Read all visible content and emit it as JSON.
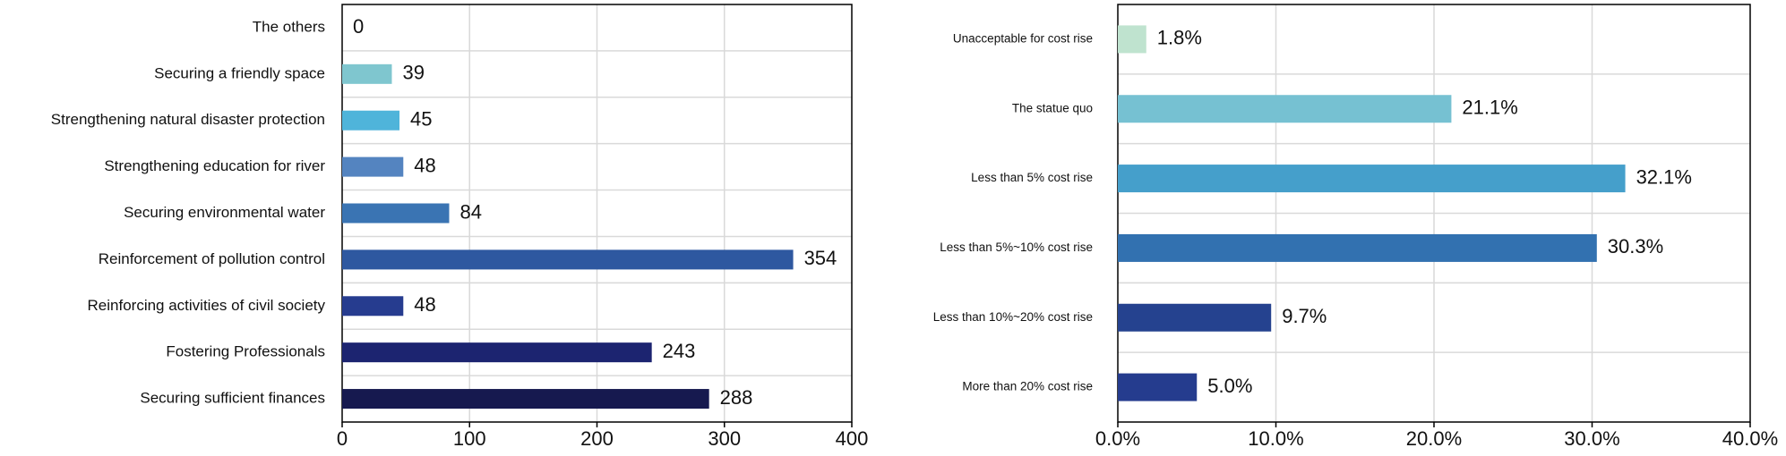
{
  "chart_data": [
    {
      "type": "bar",
      "orientation": "horizontal",
      "categories": [
        "The others",
        "Securing a friendly space",
        "Strengthening natural disaster protection",
        "Strengthening education for river",
        "Securing environmental water",
        "Reinforcement of pollution control",
        "Reinforcing activities of civil society",
        "Fostering Professionals",
        "Securing sufficient finances"
      ],
      "values": [
        0,
        39,
        45,
        48,
        84,
        354,
        48,
        243,
        288
      ],
      "value_labels": [
        "0",
        "39",
        "45",
        "48",
        "84",
        "354",
        "48",
        "243",
        "288"
      ],
      "colors": [
        "#7fc6cf",
        "#7fc6cf",
        "#4fb4da",
        "#5484c0",
        "#3a74b3",
        "#2e58a0",
        "#263c8f",
        "#1c2470",
        "#16194f"
      ],
      "xlim": [
        0,
        400
      ],
      "xticks": [
        0,
        100,
        200,
        300,
        400
      ],
      "xtick_labels": [
        "0",
        "100",
        "200",
        "300",
        "400"
      ],
      "grid": true,
      "title": "",
      "xlabel": "",
      "ylabel": ""
    },
    {
      "type": "bar",
      "orientation": "horizontal",
      "categories": [
        "Unacceptable for cost rise",
        "The statue quo",
        "Less than 5% cost rise",
        "Less than 5%~10% cost rise",
        "Less than 10%~20% cost rise",
        "More than 20% cost rise"
      ],
      "values": [
        1.8,
        21.1,
        32.1,
        30.3,
        9.7,
        5.0
      ],
      "value_labels": [
        "1.8%",
        "21.1%",
        "32.1%",
        "30.3%",
        "9.7%",
        "5.0%"
      ],
      "colors": [
        "#bfe3cf",
        "#76c1d2",
        "#459fcb",
        "#3271b0",
        "#25428f",
        "#253c8e"
      ],
      "xlim": [
        0,
        40
      ],
      "xticks": [
        0,
        10,
        20,
        30,
        40
      ],
      "xtick_labels": [
        "0.0%",
        "10.0%",
        "20.0%",
        "30.0%",
        "40.0%"
      ],
      "grid": true,
      "title": "",
      "xlabel": "",
      "ylabel": ""
    }
  ]
}
